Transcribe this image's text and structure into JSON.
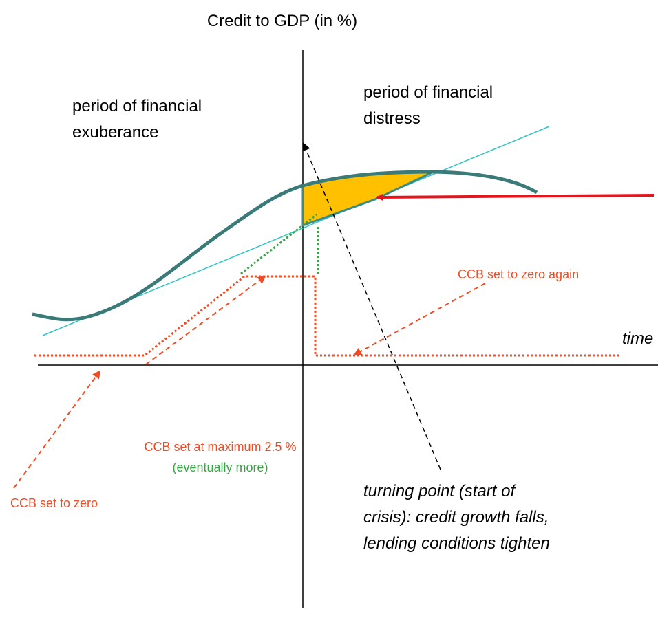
{
  "axis_label": "Credit to GDP (in %)",
  "x_axis_label": "time",
  "regions": [
    {
      "lines": [
        "period of financial",
        "exuberance"
      ]
    },
    {
      "lines": [
        "period of financial",
        "distress"
      ]
    }
  ],
  "annotations": [
    {
      "lines": [
        "CCB set to zero again"
      ]
    },
    {
      "lines": [
        "CCB set at maximum 2.5 %",
        "(eventually more)"
      ]
    },
    {
      "lines": [
        "CCB set to zero"
      ]
    },
    {
      "lines": [
        "turning point (start of",
        "crisis): credit growth falls,",
        "lending conditions tighten"
      ]
    }
  ]
}
